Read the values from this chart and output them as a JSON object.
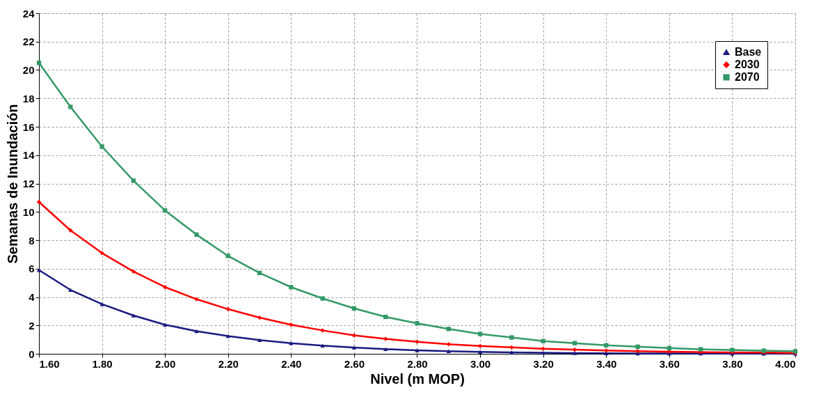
{
  "chart_data": {
    "type": "line",
    "xlabel": "Nivel (m MOP)",
    "ylabel": "Semanas de Inundación",
    "x": [
      1.6,
      1.7,
      1.8,
      1.9,
      2.0,
      2.1,
      2.2,
      2.3,
      2.4,
      2.5,
      2.6,
      2.7,
      2.8,
      2.9,
      3.0,
      3.1,
      3.2,
      3.3,
      3.4,
      3.5,
      3.6,
      3.7,
      3.8,
      3.9,
      4.0
    ],
    "series": [
      {
        "name": "Base",
        "color": "#1a1a80",
        "marker": "triangle",
        "values": [
          5.9,
          4.5,
          3.5,
          2.7,
          2.05,
          1.6,
          1.25,
          0.97,
          0.75,
          0.58,
          0.44,
          0.33,
          0.25,
          0.18,
          0.13,
          0.1,
          0.07,
          0.05,
          0.04,
          0.03,
          0.02,
          0.02,
          0.01,
          0.01,
          0.01
        ]
      },
      {
        "name": "2030",
        "color": "#ff0000",
        "marker": "diamond",
        "values": [
          10.7,
          8.7,
          7.1,
          5.8,
          4.7,
          3.85,
          3.15,
          2.55,
          2.05,
          1.65,
          1.3,
          1.05,
          0.85,
          0.68,
          0.55,
          0.45,
          0.36,
          0.29,
          0.23,
          0.19,
          0.15,
          0.12,
          0.1,
          0.08,
          0.06
        ]
      },
      {
        "name": "2070",
        "color": "#339966",
        "marker": "square",
        "values": [
          20.5,
          17.4,
          14.6,
          12.2,
          10.1,
          8.4,
          6.9,
          5.7,
          4.7,
          3.9,
          3.2,
          2.6,
          2.15,
          1.75,
          1.4,
          1.15,
          0.9,
          0.75,
          0.6,
          0.5,
          0.4,
          0.32,
          0.27,
          0.22,
          0.18
        ]
      }
    ],
    "xlim": [
      1.6,
      4.0
    ],
    "xticks": [
      {
        "value": 1.6,
        "label": "1.60"
      },
      {
        "value": 1.8,
        "label": "1.80"
      },
      {
        "value": 2.0,
        "label": "2.00"
      },
      {
        "value": 2.2,
        "label": "2.20"
      },
      {
        "value": 2.4,
        "label": "2.40"
      },
      {
        "value": 2.6,
        "label": "2.60"
      },
      {
        "value": 2.8,
        "label": "2.80"
      },
      {
        "value": 3.0,
        "label": "3.00"
      },
      {
        "value": 3.2,
        "label": "3.20"
      },
      {
        "value": 3.4,
        "label": "3.40"
      },
      {
        "value": 3.6,
        "label": "3.60"
      },
      {
        "value": 3.8,
        "label": "3.80"
      },
      {
        "value": 4.0,
        "label": "4.00"
      }
    ],
    "ylim": [
      0,
      24
    ],
    "yticks": [
      0,
      2,
      4,
      6,
      8,
      10,
      12,
      14,
      16,
      18,
      20,
      22,
      24
    ],
    "grid": true,
    "line_style": "solid",
    "legend": "top right"
  }
}
